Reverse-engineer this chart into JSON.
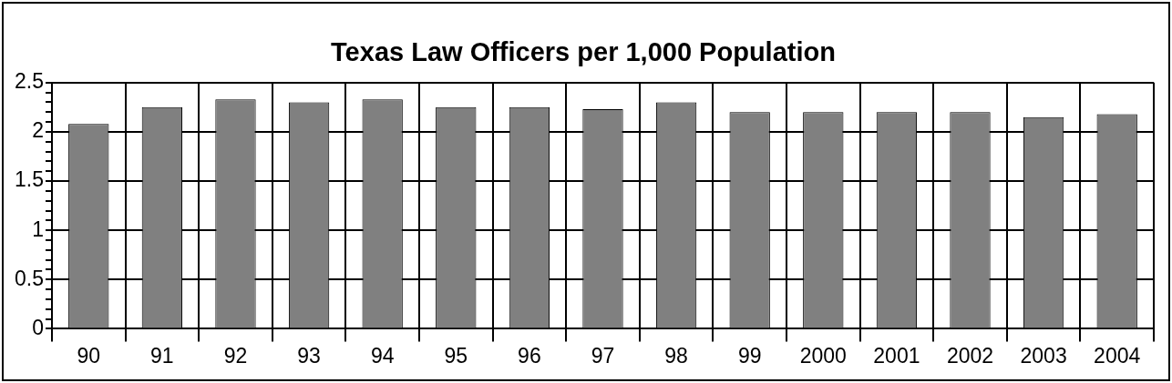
{
  "chart_data": {
    "type": "bar",
    "title": "Texas Law Officers per 1,000 Population",
    "categories": [
      "90",
      "91",
      "92",
      "93",
      "94",
      "95",
      "96",
      "97",
      "98",
      "99",
      "2000",
      "2001",
      "2002",
      "2003",
      "2004"
    ],
    "values": [
      2.08,
      2.25,
      2.33,
      2.3,
      2.33,
      2.25,
      2.25,
      2.23,
      2.3,
      2.2,
      2.2,
      2.2,
      2.2,
      2.15,
      2.18
    ],
    "color": "#808080",
    "ylim": [
      0,
      2.5
    ],
    "yticks": [
      0,
      {
        "value": 0.1,
        "label": null
      },
      {
        "value": 0.2,
        "label": null
      },
      {
        "value": 0.3,
        "label": null
      },
      {
        "value": 0.4,
        "label": null
      },
      0.5,
      {
        "value": 0.6,
        "label": null
      },
      {
        "value": 0.7,
        "label": null
      },
      {
        "value": 0.8,
        "label": null
      },
      {
        "value": 0.9,
        "label": null
      },
      1,
      {
        "value": 1.1,
        "label": null
      },
      {
        "value": 1.2,
        "label": null
      },
      {
        "value": 1.3,
        "label": null
      },
      {
        "value": 1.4,
        "label": null
      },
      1.5,
      {
        "value": 1.6,
        "label": null
      },
      {
        "value": 1.7,
        "label": null
      },
      {
        "value": 1.8,
        "label": null
      },
      {
        "value": 1.9,
        "label": null
      },
      2,
      {
        "value": 2.1,
        "label": null
      },
      {
        "value": 2.2,
        "label": null
      },
      {
        "value": 2.3,
        "label": null
      },
      {
        "value": 2.4,
        "label": null
      },
      2.5
    ],
    "grid": true
  }
}
